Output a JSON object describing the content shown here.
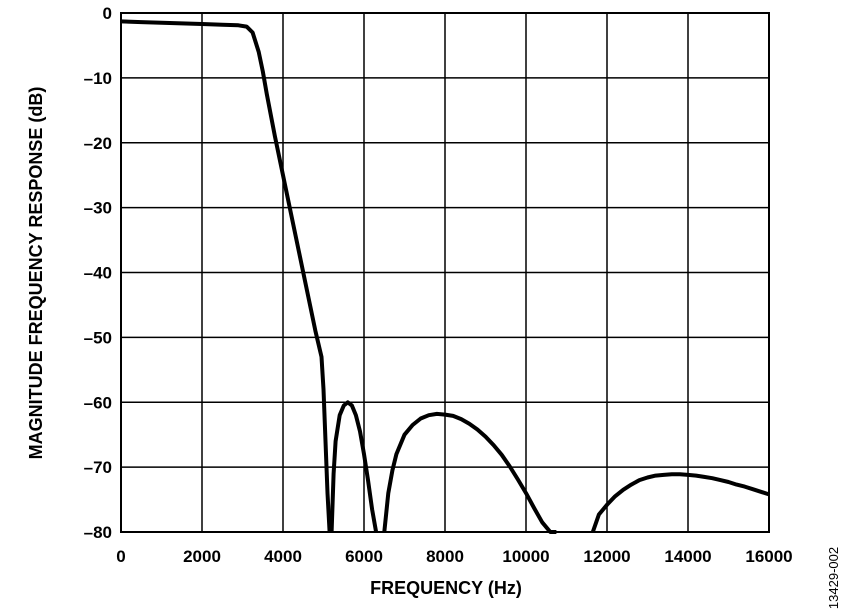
{
  "chart_data": {
    "type": "line",
    "xlabel": "FREQUENCY (Hz)",
    "ylabel": "MAGNITUDE FREQUENCY RESPONSE (dB)",
    "xlim": [
      0,
      16000
    ],
    "ylim": [
      -80,
      0
    ],
    "x_ticks": [
      0,
      2000,
      4000,
      6000,
      8000,
      10000,
      12000,
      14000,
      16000
    ],
    "x_tick_labels": [
      "0",
      "2000",
      "4000",
      "6000",
      "8000",
      "10000",
      "12000",
      "14000",
      "16000"
    ],
    "y_ticks": [
      0,
      -10,
      -20,
      -30,
      -40,
      -50,
      -60,
      -70,
      -80
    ],
    "y_tick_labels": [
      "0",
      "–10",
      "–20",
      "–30",
      "–40",
      "–50",
      "–60",
      "–70",
      "–80"
    ],
    "grid": true,
    "line_color": "#000000",
    "series": [
      {
        "segments": [
          {
            "x": [
              0,
              500,
              1000,
              1500,
              2000,
              2500,
              2900,
              3100,
              3250,
              3400,
              3500,
              3600,
              3800,
              4000,
              4200,
              4400,
              4600,
              4800,
              4950,
              5000,
              5050,
              5100,
              5150
            ],
            "y": [
              -1.3,
              -1.4,
              -1.5,
              -1.6,
              -1.7,
              -1.8,
              -1.9,
              -2.1,
              -3.0,
              -6.0,
              -9.0,
              -12.5,
              -19.0,
              -25.0,
              -31.0,
              -37.0,
              -43.0,
              -49.0,
              -53.0,
              -58.0,
              -66.0,
              -74.0,
              -80.0
            ]
          },
          {
            "x": [
              5200,
              5250,
              5300,
              5400,
              5500,
              5600,
              5700,
              5800,
              5900,
              6000,
              6100,
              6200,
              6300
            ],
            "y": [
              -80.0,
              -71.0,
              -66.0,
              -62.0,
              -60.5,
              -60.0,
              -60.5,
              -62.0,
              -64.5,
              -68.0,
              -72.0,
              -76.5,
              -80.0
            ]
          },
          {
            "x": [
              6500,
              6600,
              6700,
              6800,
              7000,
              7200,
              7400,
              7600,
              7800,
              8000,
              8200,
              8400,
              8600,
              8800,
              9000,
              9200,
              9400,
              9600,
              9800,
              10000,
              10200,
              10400,
              10600,
              10750
            ],
            "y": [
              -80.0,
              -74.0,
              -70.5,
              -68.0,
              -65.0,
              -63.5,
              -62.5,
              -62.0,
              -61.8,
              -61.9,
              -62.1,
              -62.6,
              -63.3,
              -64.2,
              -65.3,
              -66.6,
              -68.1,
              -69.9,
              -71.9,
              -74.0,
              -76.3,
              -78.5,
              -80.0,
              -80.0
            ]
          },
          {
            "x": [
              11650,
              11800,
              12000,
              12200,
              12400,
              12600,
              12800,
              13000,
              13200,
              13400,
              13600,
              13800,
              14000,
              14200,
              14400,
              14600,
              14800,
              15000,
              15200,
              15400,
              15600,
              15800,
              16000
            ],
            "y": [
              -80.0,
              -77.3,
              -75.8,
              -74.5,
              -73.5,
              -72.7,
              -72.0,
              -71.6,
              -71.3,
              -71.2,
              -71.1,
              -71.1,
              -71.2,
              -71.3,
              -71.5,
              -71.7,
              -72.0,
              -72.3,
              -72.7,
              -73.0,
              -73.4,
              -73.8,
              -74.2
            ]
          }
        ]
      }
    ]
  },
  "figure_id": "13429-002"
}
